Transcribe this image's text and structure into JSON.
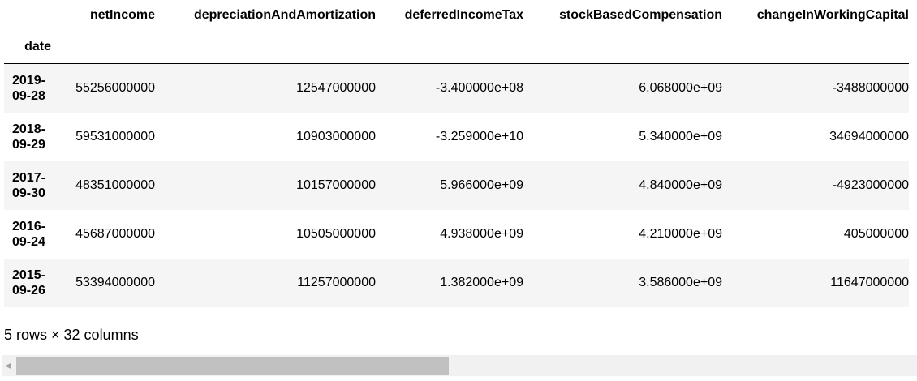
{
  "dataframe": {
    "index_name": "date",
    "columns": [
      "netIncome",
      "depreciationAndAmortization",
      "deferredIncomeTax",
      "stockBasedCompensation",
      "changeInWorkingCapital"
    ],
    "rows": [
      {
        "date_year": "2019-",
        "date_rest": "09-28",
        "values": [
          "55256000000",
          "12547000000",
          "-3.400000e+08",
          "6.068000e+09",
          "-3488000000"
        ]
      },
      {
        "date_year": "2018-",
        "date_rest": "09-29",
        "values": [
          "59531000000",
          "10903000000",
          "-3.259000e+10",
          "5.340000e+09",
          "34694000000"
        ]
      },
      {
        "date_year": "2017-",
        "date_rest": "09-30",
        "values": [
          "48351000000",
          "10157000000",
          "5.966000e+09",
          "4.840000e+09",
          "-4923000000"
        ]
      },
      {
        "date_year": "2016-",
        "date_rest": "09-24",
        "values": [
          "45687000000",
          "10505000000",
          "4.938000e+09",
          "4.210000e+09",
          "405000000"
        ]
      },
      {
        "date_year": "2015-",
        "date_rest": "09-26",
        "values": [
          "53394000000",
          "11257000000",
          "1.382000e+09",
          "3.586000e+09",
          "11647000000"
        ]
      }
    ],
    "shape_note": "5 rows × 32 columns"
  },
  "scrollbar": {
    "left_arrow": "◀",
    "thumb_fraction": 0.48
  },
  "colors": {
    "row_stripe": "#f5f5f5",
    "scroll_track": "#f1f1f1",
    "scroll_thumb": "#c1c1c1"
  }
}
